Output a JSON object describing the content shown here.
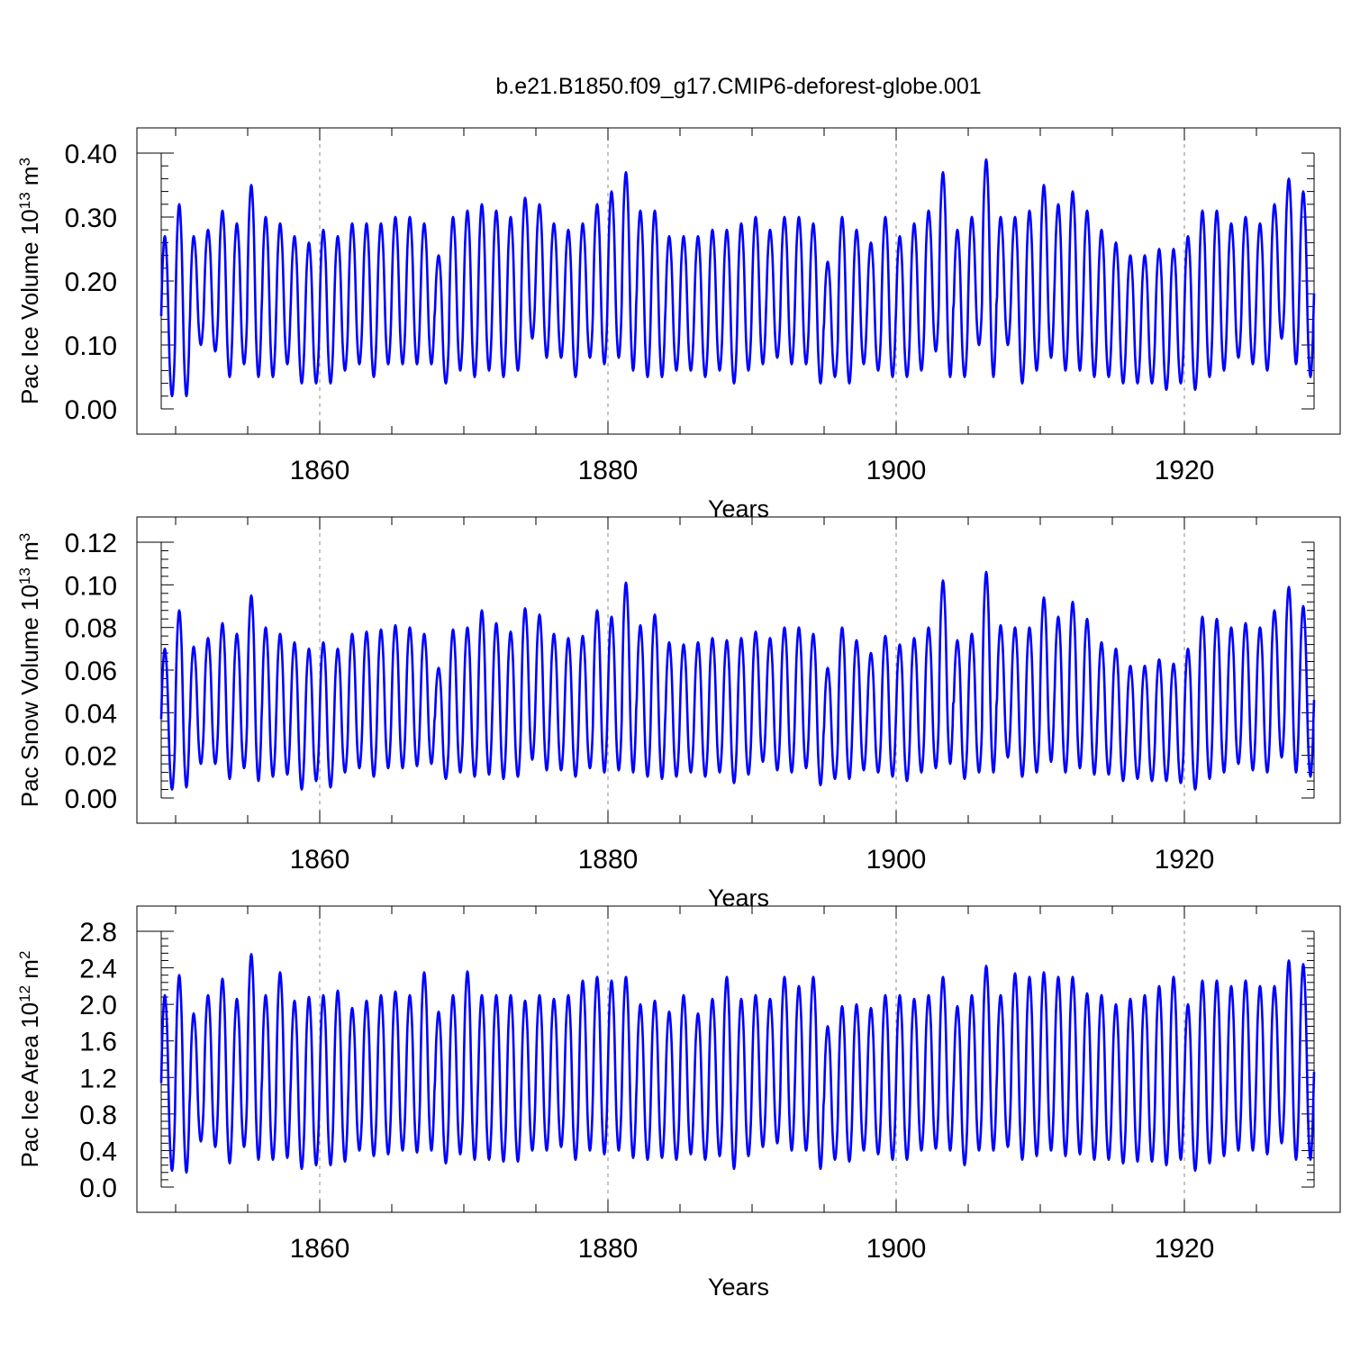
{
  "figure_title": "b.e21.B1850.f09_g17.CMIP6-deforest-globe.001",
  "line_color": "#0000ff",
  "chart_data": [
    {
      "type": "line",
      "title": "",
      "ylabel": "Pac Ice Volume 10",
      "ylabel_sup": "13",
      "ylabel_unit": " m",
      "ylabel_unit_sup": "3",
      "xlabel": "Years",
      "xlim": [
        1849,
        1929
      ],
      "ylim": [
        0,
        0.4
      ],
      "yticks": [
        0.0,
        0.1,
        0.2,
        0.3,
        0.4
      ],
      "ytick_labels": [
        "0.00",
        "0.10",
        "0.20",
        "0.30",
        "0.40"
      ],
      "xticks": [
        1860,
        1880,
        1900,
        1920
      ],
      "xtick_labels": [
        "1860",
        "1880",
        "1900",
        "1920"
      ],
      "grid_x": [
        1860,
        1880,
        1900,
        1920
      ],
      "series": [
        {
          "name": "Pac Ice Volume",
          "start_year": 1849.0,
          "annual_max": [
            0.27,
            0.32,
            0.27,
            0.28,
            0.31,
            0.29,
            0.35,
            0.3,
            0.29,
            0.27,
            0.26,
            0.28,
            0.27,
            0.29,
            0.29,
            0.29,
            0.3,
            0.3,
            0.29,
            0.24,
            0.3,
            0.31,
            0.32,
            0.31,
            0.3,
            0.33,
            0.32,
            0.29,
            0.28,
            0.29,
            0.32,
            0.34,
            0.37,
            0.31,
            0.31,
            0.27,
            0.27,
            0.27,
            0.28,
            0.28,
            0.29,
            0.3,
            0.28,
            0.3,
            0.3,
            0.29,
            0.23,
            0.3,
            0.28,
            0.26,
            0.3,
            0.27,
            0.29,
            0.31,
            0.37,
            0.28,
            0.3,
            0.39,
            0.3,
            0.3,
            0.31,
            0.35,
            0.32,
            0.34,
            0.31,
            0.28,
            0.26,
            0.24,
            0.24,
            0.25,
            0.25,
            0.27,
            0.31,
            0.31,
            0.29,
            0.3,
            0.29,
            0.32,
            0.36,
            0.34
          ],
          "annual_min": [
            0.02,
            0.02,
            0.1,
            0.09,
            0.05,
            0.07,
            0.05,
            0.05,
            0.07,
            0.04,
            0.04,
            0.04,
            0.06,
            0.07,
            0.05,
            0.07,
            0.07,
            0.07,
            0.07,
            0.04,
            0.06,
            0.05,
            0.06,
            0.05,
            0.06,
            0.11,
            0.08,
            0.08,
            0.05,
            0.08,
            0.07,
            0.08,
            0.06,
            0.05,
            0.05,
            0.06,
            0.06,
            0.05,
            0.06,
            0.04,
            0.06,
            0.07,
            0.08,
            0.07,
            0.07,
            0.04,
            0.05,
            0.04,
            0.07,
            0.06,
            0.05,
            0.05,
            0.06,
            0.09,
            0.05,
            0.05,
            0.1,
            0.05,
            0.1,
            0.04,
            0.06,
            0.08,
            0.06,
            0.06,
            0.05,
            0.05,
            0.04,
            0.04,
            0.04,
            0.03,
            0.04,
            0.03,
            0.05,
            0.06,
            0.08,
            0.07,
            0.06,
            0.11,
            0.07,
            0.05
          ]
        }
      ]
    },
    {
      "type": "line",
      "title": "",
      "ylabel": "Pac Snow Volume 10",
      "ylabel_sup": "13",
      "ylabel_unit": " m",
      "ylabel_unit_sup": "3",
      "xlabel": "Years",
      "xlim": [
        1849,
        1929
      ],
      "ylim": [
        0,
        0.12
      ],
      "yticks": [
        0.0,
        0.02,
        0.04,
        0.06,
        0.08,
        0.1,
        0.12
      ],
      "ytick_labels": [
        "0.00",
        "0.02",
        "0.04",
        "0.06",
        "0.08",
        "0.10",
        "0.12"
      ],
      "xticks": [
        1860,
        1880,
        1900,
        1920
      ],
      "xtick_labels": [
        "1860",
        "1880",
        "1900",
        "1920"
      ],
      "grid_x": [
        1860,
        1880,
        1900,
        1920
      ],
      "series": [
        {
          "name": "Pac Snow Volume",
          "start_year": 1849.0,
          "annual_max": [
            0.07,
            0.088,
            0.071,
            0.075,
            0.082,
            0.077,
            0.095,
            0.08,
            0.077,
            0.073,
            0.07,
            0.073,
            0.07,
            0.077,
            0.078,
            0.079,
            0.081,
            0.08,
            0.077,
            0.061,
            0.079,
            0.08,
            0.088,
            0.082,
            0.078,
            0.089,
            0.086,
            0.077,
            0.075,
            0.076,
            0.088,
            0.085,
            0.101,
            0.081,
            0.086,
            0.073,
            0.072,
            0.073,
            0.075,
            0.074,
            0.075,
            0.078,
            0.075,
            0.08,
            0.08,
            0.077,
            0.061,
            0.08,
            0.074,
            0.068,
            0.076,
            0.072,
            0.075,
            0.08,
            0.102,
            0.074,
            0.077,
            0.106,
            0.081,
            0.08,
            0.08,
            0.094,
            0.085,
            0.092,
            0.084,
            0.073,
            0.07,
            0.062,
            0.062,
            0.065,
            0.063,
            0.07,
            0.085,
            0.084,
            0.08,
            0.082,
            0.08,
            0.088,
            0.099,
            0.09
          ],
          "annual_min": [
            0.004,
            0.005,
            0.016,
            0.016,
            0.009,
            0.014,
            0.008,
            0.01,
            0.011,
            0.004,
            0.008,
            0.005,
            0.012,
            0.014,
            0.01,
            0.014,
            0.014,
            0.015,
            0.016,
            0.009,
            0.012,
            0.01,
            0.011,
            0.009,
            0.01,
            0.018,
            0.013,
            0.013,
            0.01,
            0.014,
            0.012,
            0.013,
            0.012,
            0.01,
            0.009,
            0.01,
            0.012,
            0.01,
            0.012,
            0.007,
            0.011,
            0.017,
            0.013,
            0.012,
            0.014,
            0.006,
            0.009,
            0.009,
            0.013,
            0.012,
            0.01,
            0.008,
            0.012,
            0.014,
            0.016,
            0.009,
            0.012,
            0.012,
            0.019,
            0.01,
            0.012,
            0.017,
            0.012,
            0.014,
            0.011,
            0.011,
            0.008,
            0.009,
            0.008,
            0.008,
            0.007,
            0.004,
            0.009,
            0.012,
            0.016,
            0.013,
            0.012,
            0.019,
            0.012,
            0.01
          ]
        }
      ]
    },
    {
      "type": "line",
      "title": "",
      "ylabel": "Pac Ice Area 10",
      "ylabel_sup": "12",
      "ylabel_unit": " m",
      "ylabel_unit_sup": "2",
      "xlabel": "Years",
      "xlim": [
        1849,
        1929
      ],
      "ylim": [
        0,
        2.8
      ],
      "yticks": [
        0.0,
        0.4,
        0.8,
        1.2,
        1.6,
        2.0,
        2.4,
        2.8
      ],
      "ytick_labels": [
        "0.0",
        "0.4",
        "0.8",
        "1.2",
        "1.6",
        "2.0",
        "2.4",
        "2.8"
      ],
      "xticks": [
        1860,
        1880,
        1900,
        1920
      ],
      "xtick_labels": [
        "1860",
        "1880",
        "1900",
        "1920"
      ],
      "grid_x": [
        1860,
        1880,
        1900,
        1920
      ],
      "series": [
        {
          "name": "Pac Ice Area",
          "start_year": 1849.0,
          "annual_max": [
            2.1,
            2.32,
            1.9,
            2.1,
            2.28,
            2.06,
            2.55,
            2.1,
            2.35,
            2.04,
            2.08,
            2.1,
            2.15,
            1.96,
            2.04,
            2.1,
            2.14,
            2.1,
            2.35,
            1.92,
            2.1,
            2.36,
            2.1,
            2.1,
            2.1,
            2.04,
            2.1,
            2.06,
            2.1,
            2.26,
            2.3,
            2.26,
            2.3,
            2.0,
            2.04,
            1.92,
            2.1,
            1.9,
            2.06,
            2.3,
            2.06,
            2.1,
            2.06,
            2.3,
            2.2,
            2.3,
            1.76,
            1.98,
            2.0,
            1.96,
            2.1,
            2.1,
            2.06,
            2.1,
            2.3,
            1.98,
            2.1,
            2.42,
            2.1,
            2.34,
            2.3,
            2.35,
            2.3,
            2.3,
            2.12,
            2.1,
            2.0,
            2.06,
            2.1,
            2.2,
            2.3,
            2.0,
            2.26,
            2.26,
            2.2,
            2.26,
            2.2,
            2.2,
            2.48,
            2.44
          ],
          "annual_min": [
            0.18,
            0.16,
            0.5,
            0.44,
            0.26,
            0.44,
            0.3,
            0.3,
            0.32,
            0.2,
            0.24,
            0.24,
            0.28,
            0.4,
            0.34,
            0.36,
            0.4,
            0.38,
            0.4,
            0.26,
            0.36,
            0.3,
            0.3,
            0.28,
            0.28,
            0.4,
            0.4,
            0.44,
            0.3,
            0.4,
            0.36,
            0.4,
            0.32,
            0.3,
            0.32,
            0.3,
            0.36,
            0.3,
            0.34,
            0.2,
            0.34,
            0.44,
            0.48,
            0.4,
            0.4,
            0.2,
            0.3,
            0.28,
            0.4,
            0.36,
            0.3,
            0.3,
            0.4,
            0.42,
            0.4,
            0.24,
            0.4,
            0.4,
            0.44,
            0.3,
            0.34,
            0.4,
            0.34,
            0.36,
            0.3,
            0.3,
            0.26,
            0.28,
            0.28,
            0.24,
            0.3,
            0.18,
            0.26,
            0.34,
            0.4,
            0.4,
            0.36,
            0.48,
            0.3,
            0.3
          ]
        }
      ]
    }
  ]
}
